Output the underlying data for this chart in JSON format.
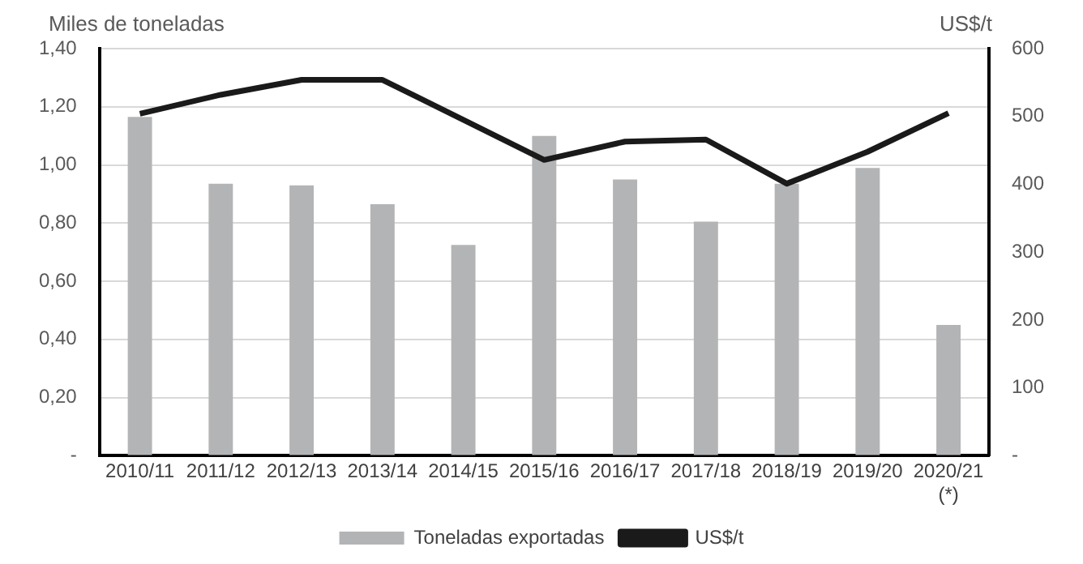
{
  "chart_data": {
    "type": "bar",
    "categories": [
      "2010/11",
      "2011/12",
      "2012/13",
      "2013/14",
      "2014/15",
      "2015/16",
      "2016/17",
      "2017/18",
      "2018/19",
      "2019/20",
      "2020/21\n(*)"
    ],
    "series": [
      {
        "name": "Toneladas exportadas",
        "color": "#b3b4b6",
        "values": [
          1.165,
          0.935,
          0.93,
          0.865,
          0.725,
          1.1,
          0.95,
          0.805,
          0.935,
          0.99,
          0.45
        ]
      },
      {
        "name": "US$/t",
        "type": "line",
        "axis": "y2",
        "color": "#1a1a1a",
        "values": [
          504,
          532,
          554,
          554,
          495,
          436,
          463,
          466,
          401,
          448,
          505
        ]
      }
    ],
    "ylabel": "Miles de toneladas",
    "y2label": "US$/t",
    "ylim": [
      0,
      1.4
    ],
    "yticks": [
      {
        "value": 0,
        "label": "-"
      },
      {
        "value": 0.2,
        "label": "0,20"
      },
      {
        "value": 0.4,
        "label": "0,40"
      },
      {
        "value": 0.6,
        "label": "0,60"
      },
      {
        "value": 0.8,
        "label": "0,80"
      },
      {
        "value": 1,
        "label": "1,00"
      },
      {
        "value": 1.2,
        "label": "1,20"
      },
      {
        "value": 1.4,
        "label": "1,40"
      }
    ],
    "y2lim": [
      0,
      600
    ],
    "y2ticks": [
      {
        "value": 0,
        "label": "-"
      },
      100,
      200,
      300,
      400,
      500,
      600
    ],
    "grid": "y",
    "legend": "bottom",
    "marker": "none",
    "line_style": "solid"
  }
}
